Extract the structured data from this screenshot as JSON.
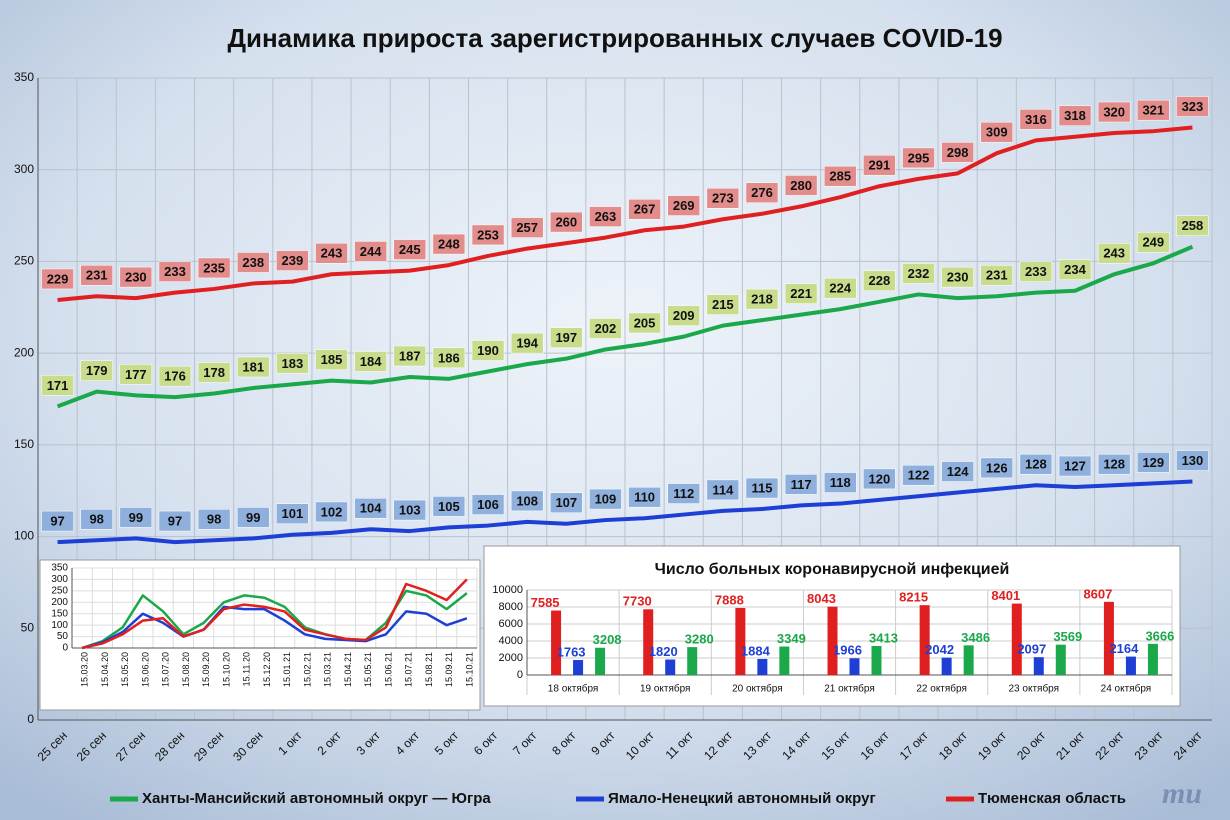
{
  "chart_data": [
    {
      "type": "line",
      "title": "Динамика прироста зарегистрированных случаев COVID-19",
      "categories": [
        "25 сен",
        "26 сен",
        "27 сен",
        "28 сен",
        "29 сен",
        "30 сен",
        "1 окт",
        "2 окт",
        "3 окт",
        "4 окт",
        "5 окт",
        "6 окт",
        "7 окт",
        "8 окт",
        "9 окт",
        "10 окт",
        "11 окт",
        "12 окт",
        "13 окт",
        "14 окт",
        "15 окт",
        "16 окт",
        "17 окт",
        "18 окт",
        "19 окт",
        "20 окт",
        "21 окт",
        "22 окт",
        "23 окт",
        "24 окт"
      ],
      "series": [
        {
          "name": "Ханты-Мансийский автономный округ — Югра",
          "color": "#1aa84a",
          "label_color": "#c8dc8c",
          "values": [
            171,
            179,
            177,
            176,
            178,
            181,
            183,
            185,
            184,
            187,
            186,
            190,
            194,
            197,
            202,
            205,
            209,
            215,
            218,
            221,
            224,
            228,
            232,
            230,
            231,
            233,
            234,
            243,
            249,
            258
          ]
        },
        {
          "name": "Ямало-Ненецкий автономный округ",
          "color": "#1d3fd6",
          "label_color": "#8fb0dc",
          "values": [
            97,
            98,
            99,
            97,
            98,
            99,
            101,
            102,
            104,
            103,
            105,
            106,
            108,
            107,
            109,
            110,
            112,
            114,
            115,
            117,
            118,
            120,
            122,
            124,
            126,
            128,
            127,
            128,
            129,
            130
          ]
        },
        {
          "name": "Тюменская область",
          "color": "#e02020",
          "label_color": "#e38c8c",
          "values": [
            229,
            231,
            230,
            233,
            235,
            238,
            239,
            243,
            244,
            245,
            248,
            253,
            257,
            260,
            263,
            267,
            269,
            273,
            276,
            280,
            285,
            291,
            295,
            298,
            309,
            316,
            318,
            320,
            321,
            323
          ]
        }
      ],
      "ylim": [
        0,
        350
      ],
      "yticks": [
        0,
        50,
        100,
        150,
        200,
        250,
        300,
        350
      ],
      "grid": true,
      "data_labels": true,
      "legend": "bottom"
    },
    {
      "type": "line",
      "categories": [
        "15.03.20",
        "15.04.20",
        "15.05.20",
        "15.06.20",
        "15.07.20",
        "15.08.20",
        "15.09.20",
        "15.10.20",
        "15.11.20",
        "15.12.20",
        "15.01.21",
        "15.02.21",
        "15.03.21",
        "15.04.21",
        "15.05.21",
        "15.06.21",
        "15.07.21",
        "15.08.21",
        "15.09.21",
        "15.10.21"
      ],
      "series": [
        {
          "color": "#1aa84a",
          "values": [
            0,
            30,
            90,
            230,
            160,
            60,
            110,
            200,
            230,
            220,
            180,
            90,
            60,
            40,
            35,
            110,
            250,
            230,
            170,
            240
          ]
        },
        {
          "color": "#1d3fd6",
          "values": [
            0,
            25,
            70,
            150,
            110,
            50,
            80,
            180,
            170,
            170,
            120,
            60,
            40,
            35,
            30,
            60,
            160,
            150,
            100,
            130
          ]
        },
        {
          "color": "#e02020",
          "values": [
            0,
            20,
            60,
            120,
            130,
            50,
            80,
            170,
            190,
            180,
            160,
            80,
            60,
            40,
            35,
            90,
            280,
            250,
            210,
            300
          ]
        }
      ],
      "ylim": [
        0,
        350
      ],
      "yticks": [
        0,
        50,
        100,
        150,
        200,
        250,
        300,
        350
      ],
      "grid": true
    },
    {
      "type": "bar",
      "title": "Число больных коронавирусной  инфекцией",
      "categories": [
        "18 октября",
        "19 октября",
        "20 октября",
        "21 октября",
        "22 октября",
        "23 октября",
        "24 октября"
      ],
      "series": [
        {
          "color": "#e02020",
          "values": [
            7585,
            7730,
            7888,
            8043,
            8215,
            8401,
            8607
          ]
        },
        {
          "color": "#1d3fd6",
          "values": [
            1763,
            1820,
            1884,
            1966,
            2042,
            2097,
            2164
          ]
        },
        {
          "color": "#1aa84a",
          "values": [
            3208,
            3280,
            3349,
            3413,
            3486,
            3569,
            3666
          ]
        }
      ],
      "ylim": [
        0,
        10000
      ],
      "yticks": [
        0,
        2000,
        4000,
        6000,
        8000,
        10000
      ],
      "grid": true,
      "data_labels": true
    }
  ],
  "logo": "mu"
}
